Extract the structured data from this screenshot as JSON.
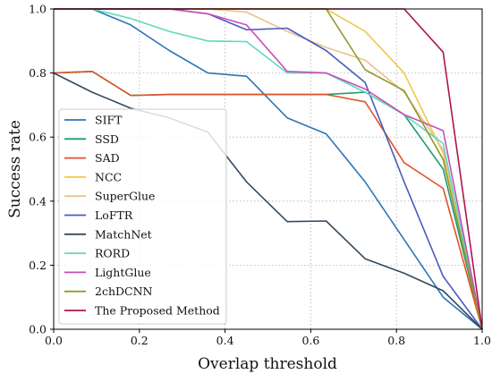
{
  "chart_data": {
    "type": "line",
    "title": "",
    "xlabel": "Overlap threshold",
    "ylabel": "Success rate",
    "xlim": [
      0.0,
      1.0
    ],
    "ylim": [
      0.0,
      1.0
    ],
    "x_ticks": [
      "0.0",
      "0.2",
      "0.4",
      "0.6",
      "0.8",
      "1.0"
    ],
    "y_ticks": [
      "0.0",
      "0.2",
      "0.4",
      "0.6",
      "0.8",
      "1.0"
    ],
    "grid": true,
    "legend_position": "bottom-left",
    "series": [
      {
        "name": "SIFT",
        "color": "#2e75b6",
        "x": [
          0.0,
          0.09,
          0.18,
          0.27,
          0.36,
          0.45,
          0.545,
          0.636,
          0.727,
          0.818,
          0.909,
          1.0
        ],
        "y": [
          1.0,
          1.0,
          0.95,
          0.87,
          0.8,
          0.79,
          0.66,
          0.61,
          0.46,
          0.28,
          0.1,
          0.0
        ]
      },
      {
        "name": "SSD",
        "color": "#1f9e6e",
        "x": [
          0.0,
          0.09,
          0.18,
          0.27,
          0.36,
          0.45,
          0.545,
          0.636,
          0.727,
          0.818,
          0.909,
          1.0
        ],
        "y": [
          0.8,
          0.805,
          0.73,
          0.733,
          0.733,
          0.733,
          0.733,
          0.733,
          0.74,
          0.67,
          0.5,
          0.0
        ]
      },
      {
        "name": "SAD",
        "color": "#e2532a",
        "x": [
          0.0,
          0.09,
          0.18,
          0.27,
          0.36,
          0.45,
          0.545,
          0.636,
          0.727,
          0.818,
          0.909,
          1.0
        ],
        "y": [
          0.8,
          0.805,
          0.73,
          0.733,
          0.733,
          0.733,
          0.733,
          0.733,
          0.71,
          0.52,
          0.44,
          0.0
        ]
      },
      {
        "name": "NCC",
        "color": "#f0c94c",
        "x": [
          0.0,
          0.09,
          0.18,
          0.27,
          0.36,
          0.45,
          0.545,
          0.636,
          0.727,
          0.818,
          0.909,
          1.0
        ],
        "y": [
          1.0,
          1.0,
          1.0,
          1.0,
          1.0,
          1.0,
          1.0,
          1.0,
          0.93,
          0.8,
          0.55,
          0.0
        ]
      },
      {
        "name": "SuperGlue",
        "color": "#e8c48a",
        "x": [
          0.0,
          0.09,
          0.18,
          0.27,
          0.36,
          0.45,
          0.545,
          0.636,
          0.727,
          0.818,
          0.909,
          1.0
        ],
        "y": [
          1.0,
          1.0,
          1.0,
          1.0,
          1.0,
          0.99,
          0.93,
          0.88,
          0.84,
          0.74,
          0.56,
          0.0
        ]
      },
      {
        "name": "LoFTR",
        "color": "#4a5cc0",
        "x": [
          0.0,
          0.09,
          0.18,
          0.27,
          0.36,
          0.45,
          0.545,
          0.636,
          0.727,
          0.818,
          0.909,
          1.0
        ],
        "y": [
          1.0,
          1.0,
          1.0,
          1.0,
          0.985,
          0.935,
          0.94,
          0.87,
          0.77,
          0.46,
          0.165,
          0.0
        ]
      },
      {
        "name": "MatchNet",
        "color": "#34495e",
        "x": [
          0.0,
          0.09,
          0.18,
          0.27,
          0.36,
          0.45,
          0.545,
          0.636,
          0.727,
          0.818,
          0.909,
          1.0
        ],
        "y": [
          0.8,
          0.74,
          0.69,
          0.66,
          0.615,
          0.46,
          0.336,
          0.338,
          0.22,
          0.175,
          0.12,
          0.0
        ]
      },
      {
        "name": "RORD",
        "color": "#5fd9bf",
        "x": [
          0.0,
          0.09,
          0.18,
          0.27,
          0.36,
          0.45,
          0.545,
          0.636,
          0.727,
          0.818,
          0.909,
          1.0
        ],
        "y": [
          1.0,
          1.0,
          0.97,
          0.93,
          0.9,
          0.898,
          0.8,
          0.8,
          0.74,
          0.67,
          0.58,
          0.0
        ]
      },
      {
        "name": "LightGlue",
        "color": "#c74fb5",
        "x": [
          0.0,
          0.09,
          0.18,
          0.27,
          0.36,
          0.45,
          0.545,
          0.636,
          0.727,
          0.818,
          0.909,
          1.0
        ],
        "y": [
          1.0,
          1.0,
          1.0,
          1.0,
          0.985,
          0.95,
          0.805,
          0.8,
          0.75,
          0.67,
          0.62,
          0.0
        ]
      },
      {
        "name": "2chDCNN",
        "color": "#8f9a2e",
        "x": [
          0.0,
          0.09,
          0.18,
          0.27,
          0.36,
          0.45,
          0.545,
          0.636,
          0.727,
          0.818,
          0.909,
          1.0
        ],
        "y": [
          1.0,
          1.0,
          1.0,
          1.0,
          1.0,
          1.0,
          1.0,
          1.0,
          0.81,
          0.745,
          0.53,
          0.0
        ]
      },
      {
        "name": "The Proposed Method",
        "color": "#b0124f",
        "x": [
          0.0,
          0.09,
          0.18,
          0.27,
          0.36,
          0.45,
          0.545,
          0.636,
          0.727,
          0.818,
          0.909,
          1.0
        ],
        "y": [
          1.0,
          1.0,
          1.0,
          1.0,
          1.0,
          1.0,
          1.0,
          1.0,
          1.0,
          1.0,
          0.865,
          0.0
        ]
      }
    ]
  }
}
